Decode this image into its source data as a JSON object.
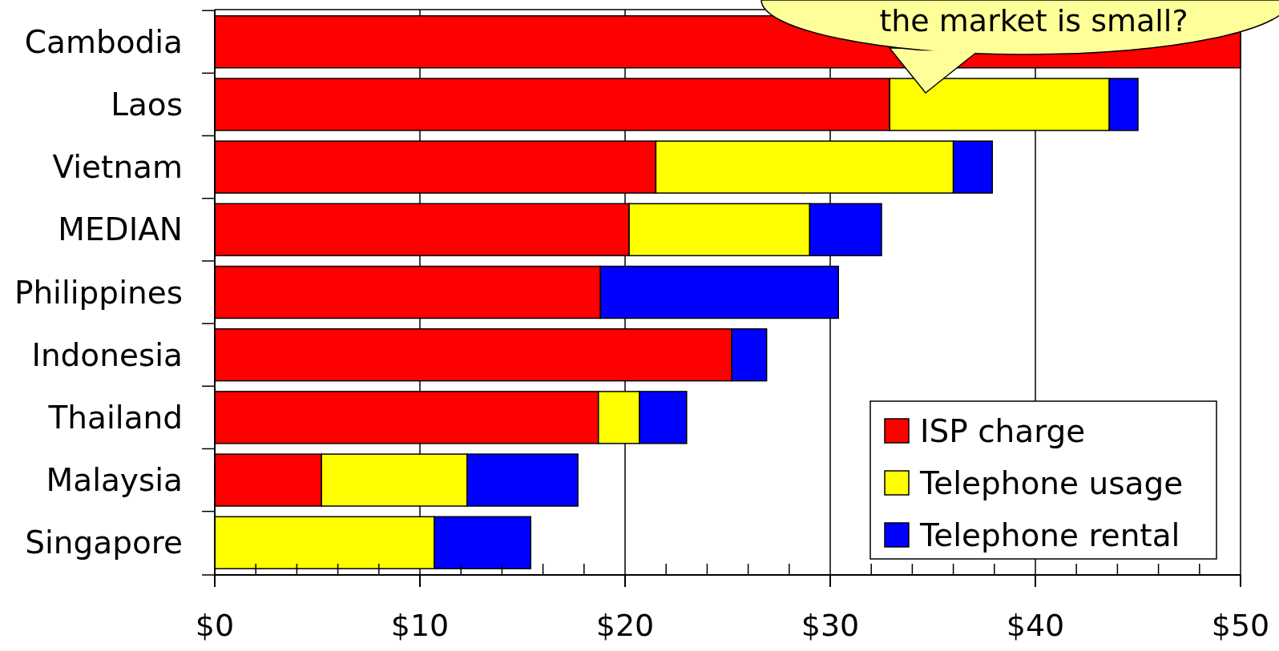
{
  "chart_data": {
    "type": "bar",
    "orientation": "horizontal",
    "stacked": true,
    "categories": [
      "Cambodia",
      "Laos",
      "Vietnam",
      "MEDIAN",
      "Philippines",
      "Indonesia",
      "Thailand",
      "Malaysia",
      "Singapore"
    ],
    "series": [
      {
        "name": "ISP charge",
        "color": "#ff0000",
        "values": [
          50,
          32.9,
          21.5,
          20.2,
          18.8,
          25.2,
          18.7,
          5.2,
          null
        ]
      },
      {
        "name": "Telephone usage",
        "color": "#ffff00",
        "values": [
          null,
          10.7,
          14.5,
          8.8,
          null,
          null,
          2.0,
          7.1,
          10.7
        ]
      },
      {
        "name": "Telephone rental",
        "color": "#0000ff",
        "values": [
          null,
          1.4,
          1.9,
          3.5,
          11.6,
          1.7,
          2.3,
          5.4,
          4.7
        ]
      }
    ],
    "xlim": [
      0,
      50
    ],
    "xticks": [
      {
        "value": 0,
        "label": "$0"
      },
      {
        "value": 2,
        "label": null
      },
      {
        "value": 4,
        "label": null
      },
      {
        "value": 6,
        "label": null
      },
      {
        "value": 8,
        "label": null
      },
      {
        "value": 10,
        "label": "$10"
      },
      {
        "value": 12,
        "label": null
      },
      {
        "value": 14,
        "label": null
      },
      {
        "value": 16,
        "label": null
      },
      {
        "value": 18,
        "label": null
      },
      {
        "value": 20,
        "label": "$20"
      },
      {
        "value": 22,
        "label": null
      },
      {
        "value": 24,
        "label": null
      },
      {
        "value": 26,
        "label": null
      },
      {
        "value": 28,
        "label": null
      },
      {
        "value": 30,
        "label": "$30"
      },
      {
        "value": 32,
        "label": null
      },
      {
        "value": 34,
        "label": null
      },
      {
        "value": 36,
        "label": null
      },
      {
        "value": 38,
        "label": null
      },
      {
        "value": 40,
        "label": "$40"
      },
      {
        "value": 42,
        "label": null
      },
      {
        "value": 44,
        "label": null
      },
      {
        "value": 46,
        "label": null
      },
      {
        "value": 48,
        "label": null
      },
      {
        "value": 50,
        "label": "$50"
      }
    ],
    "grid": "x",
    "legend": "bottom right",
    "annotations": [
      "the market is small?"
    ]
  }
}
